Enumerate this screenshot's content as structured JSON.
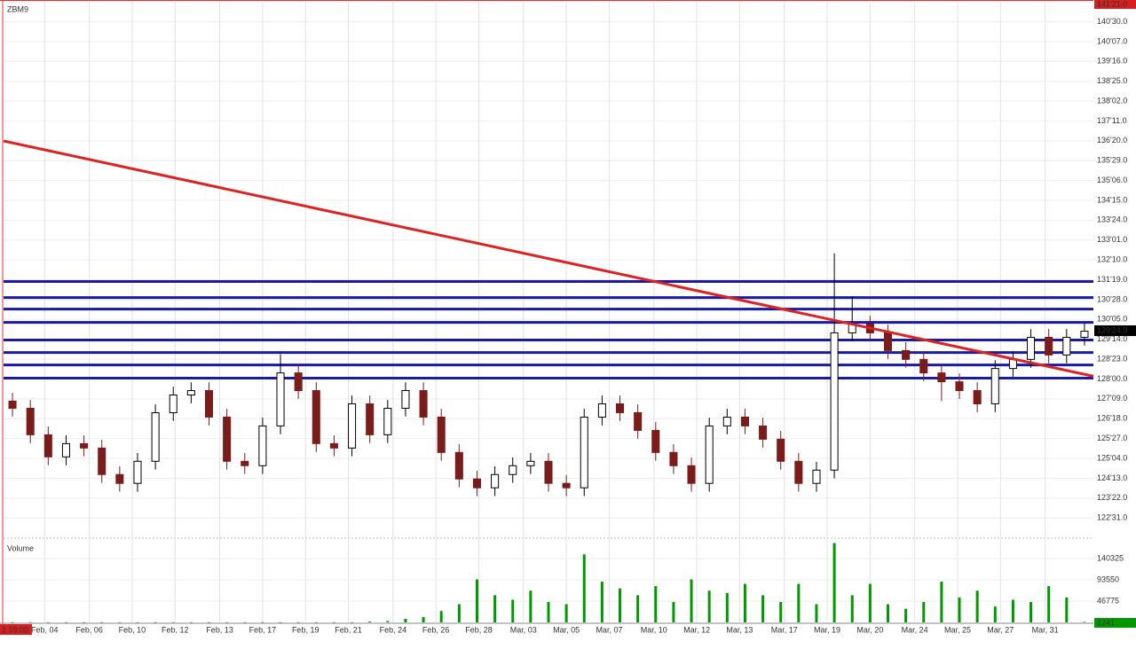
{
  "chart_data": [
    {
      "type": "candlestick",
      "title": "ZBM9",
      "xlim": [
        0,
        61
      ],
      "ylim": [
        122.3,
        141.66
      ],
      "yticks": [
        {
          "value": 141.65625,
          "label": "141'21.0"
        },
        {
          "value": 140.9375,
          "label": "140'30.0"
        },
        {
          "value": 140.21875,
          "label": "140'07.0"
        },
        {
          "value": 139.5,
          "label": "139'16.0"
        },
        {
          "value": 138.78125,
          "label": "138'25.0"
        },
        {
          "value": 138.0625,
          "label": "138'02.0"
        },
        {
          "value": 137.34375,
          "label": "137'11.0"
        },
        {
          "value": 136.625,
          "label": "136'20.0"
        },
        {
          "value": 135.90625,
          "label": "135'29.0"
        },
        {
          "value": 135.1875,
          "label": "135'06.0"
        },
        {
          "value": 134.46875,
          "label": "134'15.0"
        },
        {
          "value": 133.75,
          "label": "133'24.0"
        },
        {
          "value": 133.03125,
          "label": "133'01.0"
        },
        {
          "value": 132.3125,
          "label": "132'10.0"
        },
        {
          "value": 131.59375,
          "label": "131'19.0"
        },
        {
          "value": 130.875,
          "label": "130'28.0"
        },
        {
          "value": 130.15625,
          "label": "130'05.0"
        },
        {
          "value": 129.4375,
          "label": "129'14.0"
        },
        {
          "value": 128.71875,
          "label": "128'23.0"
        },
        {
          "value": 128.0,
          "label": "128'00.0"
        },
        {
          "value": 127.28125,
          "label": "127'09.0"
        },
        {
          "value": 126.5625,
          "label": "126'18.0"
        },
        {
          "value": 125.84375,
          "label": "125'27.0"
        },
        {
          "value": 125.125,
          "label": "125'04.0"
        },
        {
          "value": 124.40625,
          "label": "124'13.0"
        },
        {
          "value": 123.6875,
          "label": "123'22.0"
        },
        {
          "value": 122.96875,
          "label": "122'31.0"
        }
      ],
      "last_price": {
        "value": 129.75,
        "label": "129'24.0"
      },
      "up_color": "#000000",
      "down_color": "#7a1c1c",
      "open": [
        127.2,
        126.94,
        125.98,
        125.18,
        125.66,
        125.5,
        124.54,
        124.22,
        125.02,
        126.78,
        127.42,
        127.58,
        126.62,
        125.02,
        124.86,
        126.3,
        128.22,
        127.58,
        125.66,
        125.5,
        127.1,
        125.98,
        126.94,
        127.58,
        126.62,
        125.34,
        124.38,
        124.06,
        124.54,
        124.86,
        125.02,
        124.22,
        124.06,
        126.62,
        127.1,
        126.78,
        126.14,
        125.34,
        124.86,
        124.22,
        126.3,
        126.62,
        126.3,
        125.82,
        125.02,
        124.22,
        124.7,
        129.67,
        129.99,
        129.67,
        129.03,
        128.71,
        128.22,
        127.9,
        127.58,
        127.1,
        128.38,
        128.71,
        129.51,
        128.87,
        129.51
      ],
      "high": [
        127.5,
        127.24,
        126.28,
        125.96,
        125.96,
        125.8,
        124.84,
        125.32,
        127.08,
        127.72,
        127.88,
        127.88,
        126.92,
        125.32,
        126.6,
        128.9,
        128.52,
        127.88,
        125.96,
        127.4,
        127.4,
        127.24,
        127.88,
        127.88,
        126.92,
        125.64,
        124.68,
        124.84,
        125.16,
        125.32,
        125.32,
        124.52,
        126.92,
        127.4,
        127.4,
        127.08,
        126.44,
        125.64,
        125.16,
        126.6,
        126.92,
        126.92,
        126.6,
        126.12,
        125.32,
        125.0,
        132.55,
        131.0,
        130.29,
        129.97,
        129.33,
        129.01,
        128.52,
        128.2,
        127.88,
        128.68,
        129.01,
        129.81,
        129.81,
        129.81,
        130.03
      ],
      "low": [
        126.64,
        125.68,
        124.88,
        124.88,
        125.2,
        124.24,
        123.92,
        123.92,
        124.72,
        126.48,
        127.12,
        126.32,
        124.72,
        124.56,
        124.56,
        126.0,
        127.28,
        125.36,
        125.2,
        125.2,
        125.68,
        125.68,
        126.64,
        126.32,
        125.04,
        124.08,
        123.76,
        123.76,
        124.24,
        124.56,
        123.92,
        123.76,
        123.76,
        126.32,
        126.48,
        125.84,
        125.04,
        124.56,
        123.92,
        123.92,
        126.0,
        126.0,
        125.52,
        124.72,
        123.92,
        123.92,
        124.4,
        129.37,
        129.37,
        128.73,
        128.41,
        127.92,
        127.2,
        127.28,
        126.8,
        126.8,
        128.08,
        128.41,
        128.57,
        128.57,
        129.21
      ],
      "close": [
        126.94,
        125.98,
        125.18,
        125.66,
        125.5,
        124.54,
        124.22,
        125.02,
        126.78,
        127.42,
        127.58,
        126.62,
        125.02,
        124.86,
        126.3,
        128.22,
        127.58,
        125.66,
        125.5,
        127.1,
        125.98,
        126.94,
        127.58,
        126.62,
        125.34,
        124.38,
        124.06,
        124.54,
        124.86,
        125.02,
        124.22,
        124.06,
        126.62,
        127.1,
        126.78,
        126.14,
        125.34,
        124.86,
        124.22,
        126.3,
        126.62,
        126.3,
        125.82,
        125.02,
        124.22,
        124.7,
        129.67,
        129.99,
        129.67,
        129.03,
        128.71,
        128.22,
        127.9,
        127.58,
        127.1,
        128.38,
        128.71,
        129.51,
        128.87,
        129.51,
        129.73
      ],
      "hlines": {
        "color": "#1a1aa6",
        "values": [
          131.53,
          130.95,
          130.53,
          130.05,
          129.41,
          128.96,
          128.51,
          128.03
        ]
      },
      "trendline": {
        "color": "#dd2222",
        "x": [
          0,
          61
        ],
        "y": [
          136.62,
          128.1
        ]
      }
    },
    {
      "type": "bar",
      "title": "Volume",
      "color": "#009900",
      "xlim": [
        0,
        61
      ],
      "ylim": [
        0,
        180000
      ],
      "yticks": [
        46775,
        93550,
        140325
      ],
      "time_label": "2 19:00",
      "xticks": [
        {
          "value": 2.3,
          "label": "Feb, 04"
        },
        {
          "value": 4.8,
          "label": "Feb, 06"
        },
        {
          "value": 7.2,
          "label": "Feb, 10"
        },
        {
          "value": 9.6,
          "label": "Feb, 12"
        },
        {
          "value": 12.1,
          "label": "Feb, 13"
        },
        {
          "value": 14.5,
          "label": "Feb, 17"
        },
        {
          "value": 16.9,
          "label": "Feb, 19"
        },
        {
          "value": 19.3,
          "label": "Feb, 21"
        },
        {
          "value": 21.8,
          "label": "Feb, 24"
        },
        {
          "value": 24.2,
          "label": "Feb, 26"
        },
        {
          "value": 26.6,
          "label": "Feb, 28"
        },
        {
          "value": 29.1,
          "label": "Mar, 03"
        },
        {
          "value": 31.5,
          "label": "Mar, 05"
        },
        {
          "value": 33.9,
          "label": "Mar, 07"
        },
        {
          "value": 36.4,
          "label": "Mar, 10"
        },
        {
          "value": 38.8,
          "label": "Mar, 12"
        },
        {
          "value": 41.2,
          "label": "Mar, 13"
        },
        {
          "value": 43.7,
          "label": "Mar, 17"
        },
        {
          "value": 46.1,
          "label": "Mar, 19"
        },
        {
          "value": 48.5,
          "label": "Mar, 20"
        },
        {
          "value": 51.0,
          "label": "Mar, 24"
        },
        {
          "value": 53.4,
          "label": "Mar, 25"
        },
        {
          "value": 55.8,
          "label": "Mar, 27"
        },
        {
          "value": 58.3,
          "label": "Mar, 31"
        }
      ],
      "values": [
        300,
        300,
        300,
        300,
        300,
        300,
        300,
        300,
        300,
        300,
        300,
        300,
        300,
        300,
        300,
        300,
        300,
        300,
        300,
        300,
        2000,
        3000,
        8000,
        12000,
        25000,
        40000,
        95000,
        60000,
        50000,
        70000,
        45000,
        40000,
        150000,
        90000,
        75000,
        60000,
        80000,
        45000,
        95000,
        70000,
        65000,
        85000,
        60000,
        45000,
        85000,
        40000,
        175000,
        60000,
        85000,
        40000,
        30000,
        45000,
        90000,
        55000,
        70000,
        35000,
        50000,
        45000,
        80000,
        55000,
        1241
      ]
    }
  ]
}
